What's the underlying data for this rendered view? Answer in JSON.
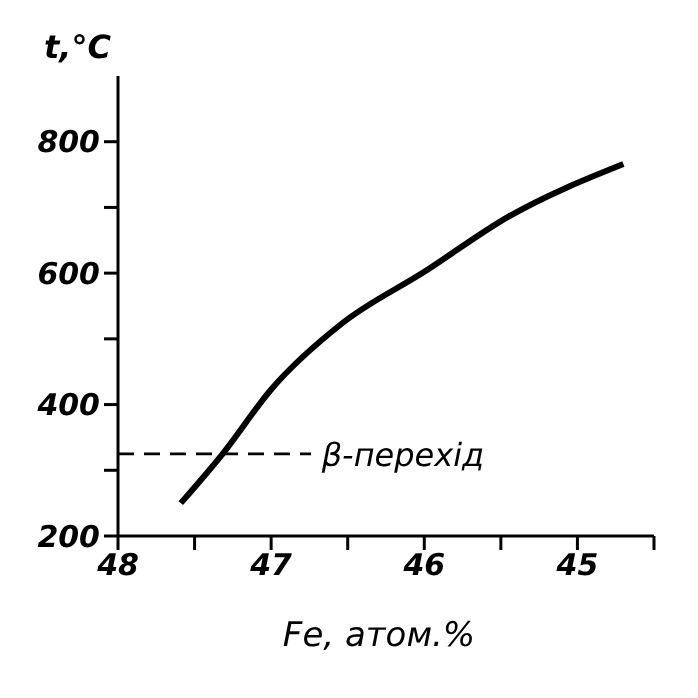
{
  "chart_data": {
    "type": "line",
    "xlabel": "Fe, атом.%",
    "ylabel": "t,°C",
    "x": [
      47.59,
      47.31,
      47.0,
      46.54,
      46.0,
      45.45,
      44.7
    ],
    "series": [
      {
        "color": "#000000",
        "values": [
          250,
          327,
          423,
          523,
          602,
          686,
          766
        ]
      }
    ],
    "xlim": [
      48,
      44.5
    ],
    "xticks": [
      48,
      {
        "value": 47.5,
        "label": null
      },
      47,
      {
        "value": 46.5,
        "label": null
      },
      46,
      {
        "value": 45.5,
        "label": null
      },
      45,
      {
        "value": 44.5,
        "label": null
      }
    ],
    "ylim": [
      200,
      900
    ],
    "yticks": [
      200,
      {
        "value": 300,
        "label": null
      },
      400,
      {
        "value": 500,
        "label": null
      },
      600,
      {
        "value": 700,
        "label": null
      },
      800
    ],
    "ref_lines": [
      {
        "axis": "y",
        "value": 325,
        "label": "β-перехід",
        "line_style": "dashed",
        "color": "#000000"
      }
    ],
    "marker": "none",
    "line_style": "solid",
    "grid": false,
    "legend": false
  }
}
